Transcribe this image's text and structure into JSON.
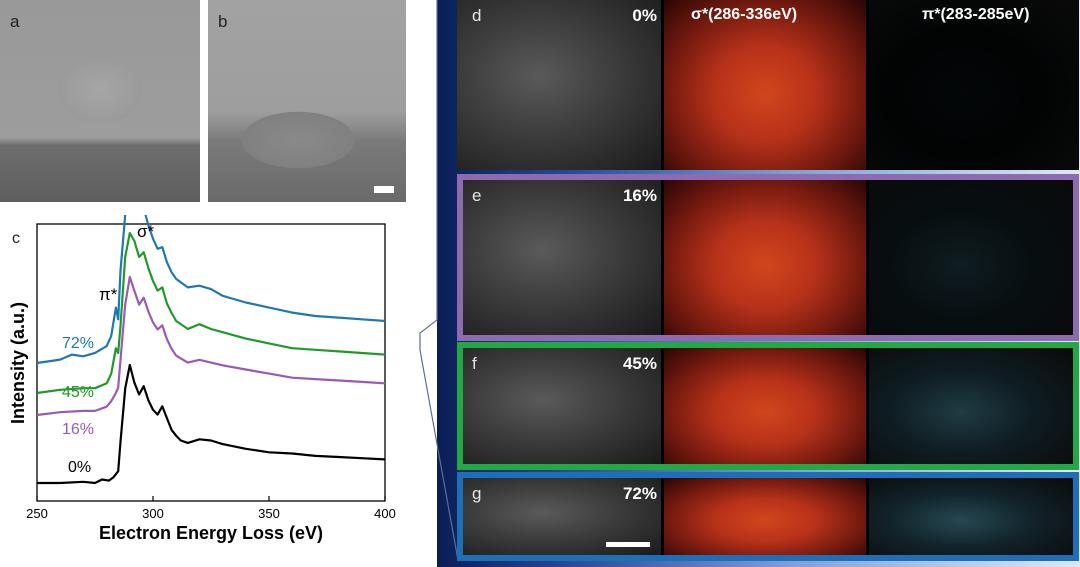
{
  "panels_top": {
    "a": "a",
    "b": "b"
  },
  "chart_data": {
    "type": "line",
    "panel_label": "c",
    "xlabel": "Electron Energy Loss (eV)",
    "ylabel": "Intensity (a.u.)",
    "xlim": [
      250,
      400
    ],
    "x_ticks": [
      "250",
      "300",
      "350",
      "400"
    ],
    "annotations": {
      "sigma": "σ*",
      "pi": "π*"
    },
    "series": [
      {
        "name": "0%",
        "color": "#000000",
        "x": [
          250,
          260,
          270,
          275,
          278,
          281,
          283,
          285,
          286,
          288,
          290,
          292,
          294,
          296,
          298,
          300,
          302,
          304,
          306,
          308,
          310,
          312,
          315,
          320,
          325,
          330,
          335,
          340,
          350,
          360,
          370,
          380,
          390,
          400
        ],
        "y": [
          0.0,
          0.0,
          0.01,
          0.0,
          0.03,
          0.02,
          0.05,
          0.1,
          0.35,
          0.8,
          1.0,
          0.85,
          0.75,
          0.82,
          0.7,
          0.62,
          0.58,
          0.65,
          0.55,
          0.45,
          0.4,
          0.36,
          0.34,
          0.37,
          0.36,
          0.33,
          0.31,
          0.29,
          0.26,
          0.25,
          0.23,
          0.22,
          0.21,
          0.2
        ]
      },
      {
        "name": "16%",
        "color": "#9b59b6",
        "x": [
          250,
          260,
          270,
          275,
          280,
          282,
          284,
          285,
          286,
          288,
          290,
          292,
          294,
          296,
          298,
          300,
          302,
          304,
          306,
          308,
          310,
          315,
          320,
          325,
          330,
          340,
          350,
          360,
          370,
          380,
          390,
          400
        ],
        "y": [
          0.0,
          0.02,
          0.03,
          0.03,
          0.06,
          0.1,
          0.16,
          0.2,
          0.4,
          0.8,
          1.0,
          0.9,
          0.8,
          0.85,
          0.75,
          0.67,
          0.62,
          0.65,
          0.55,
          0.48,
          0.43,
          0.38,
          0.4,
          0.38,
          0.36,
          0.33,
          0.3,
          0.27,
          0.26,
          0.25,
          0.24,
          0.23
        ]
      },
      {
        "name": "45%",
        "color": "#1f9a2a",
        "x": [
          250,
          260,
          270,
          275,
          280,
          282,
          284,
          285,
          286,
          288,
          290,
          292,
          294,
          296,
          298,
          300,
          302,
          304,
          306,
          308,
          310,
          315,
          320,
          325,
          330,
          340,
          350,
          360,
          370,
          380,
          390,
          400
        ],
        "y": [
          0.0,
          0.02,
          0.03,
          0.03,
          0.06,
          0.12,
          0.28,
          0.25,
          0.42,
          0.85,
          1.0,
          0.95,
          0.85,
          0.88,
          0.78,
          0.7,
          0.64,
          0.66,
          0.56,
          0.5,
          0.45,
          0.4,
          0.43,
          0.4,
          0.38,
          0.34,
          0.31,
          0.28,
          0.27,
          0.26,
          0.25,
          0.24
        ]
      },
      {
        "name": "72%",
        "color": "#1f77b4",
        "x": [
          250,
          260,
          265,
          270,
          275,
          280,
          282,
          284,
          285,
          286,
          288,
          290,
          292,
          294,
          296,
          298,
          300,
          302,
          304,
          306,
          308,
          310,
          315,
          320,
          325,
          330,
          340,
          350,
          360,
          370,
          380,
          390,
          400
        ],
        "y": [
          0.0,
          0.02,
          0.05,
          0.04,
          0.06,
          0.1,
          0.16,
          0.33,
          0.26,
          0.55,
          0.88,
          1.0,
          0.98,
          0.95,
          0.92,
          0.82,
          0.74,
          0.68,
          0.69,
          0.6,
          0.54,
          0.5,
          0.45,
          0.46,
          0.44,
          0.4,
          0.36,
          0.33,
          0.3,
          0.28,
          0.27,
          0.26,
          0.25
        ]
      }
    ]
  },
  "eels_maps": {
    "col_headers": {
      "sigma": "σ*(286-336eV)",
      "pi": "π*(283-285eV)"
    },
    "rows": [
      {
        "label": "d",
        "pct": "0%",
        "frame": "#000000",
        "pi_intensity": 0.05
      },
      {
        "label": "e",
        "pct": "16%",
        "frame": "#8e6bb0",
        "pi_intensity": 0.22
      },
      {
        "label": "f",
        "pct": "45%",
        "frame": "#22a845",
        "pi_intensity": 0.45
      },
      {
        "label": "g",
        "pct": "72%",
        "frame": "#1f6fb8",
        "pi_intensity": 0.55
      }
    ]
  }
}
